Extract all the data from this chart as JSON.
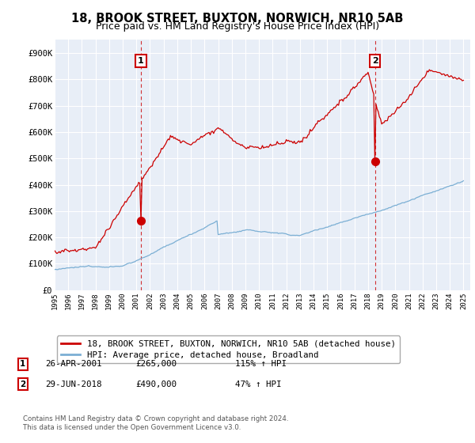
{
  "title": "18, BROOK STREET, BUXTON, NORWICH, NR10 5AB",
  "subtitle": "Price paid vs. HM Land Registry's House Price Index (HPI)",
  "ylim": [
    0,
    950000
  ],
  "yticks": [
    0,
    100000,
    200000,
    300000,
    400000,
    500000,
    600000,
    700000,
    800000,
    900000
  ],
  "ytick_labels": [
    "£0",
    "£100K",
    "£200K",
    "£300K",
    "£400K",
    "£500K",
    "£600K",
    "£700K",
    "£800K",
    "£900K"
  ],
  "line_color_house": "#cc0000",
  "line_color_hpi": "#7bafd4",
  "sale1_x": 2001.32,
  "sale1_y": 265000,
  "sale2_x": 2018.5,
  "sale2_y": 490000,
  "legend_house": "18, BROOK STREET, BUXTON, NORWICH, NR10 5AB (detached house)",
  "legend_hpi": "HPI: Average price, detached house, Broadland",
  "annotation1_date": "26-APR-2001",
  "annotation1_price": "£265,000",
  "annotation1_hpi": "115% ↑ HPI",
  "annotation2_date": "29-JUN-2018",
  "annotation2_price": "£490,000",
  "annotation2_hpi": "47% ↑ HPI",
  "footer": "Contains HM Land Registry data © Crown copyright and database right 2024.\nThis data is licensed under the Open Government Licence v3.0.",
  "bg_chart": "#e8eef7",
  "bg_figure": "#ffffff",
  "grid_color": "#ffffff",
  "title_fontsize": 10.5,
  "subtitle_fontsize": 9,
  "tick_fontsize": 7.5,
  "xmin": 1995,
  "xmax": 2025.5
}
